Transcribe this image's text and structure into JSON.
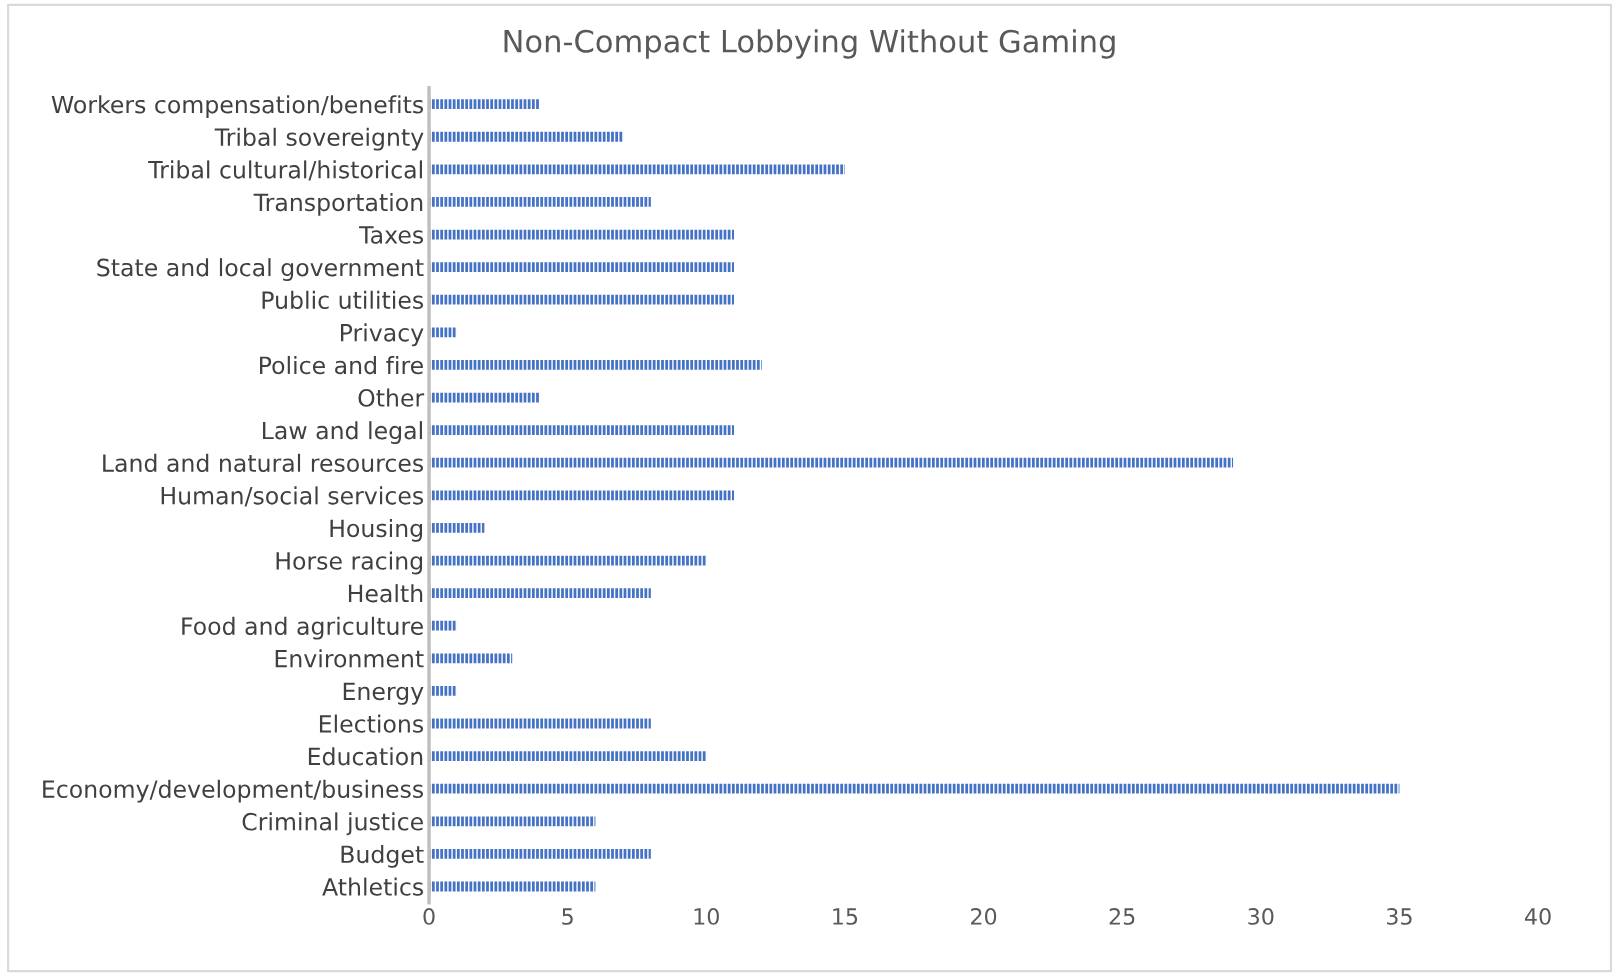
{
  "chart_data": {
    "type": "bar",
    "orientation": "horizontal",
    "title": "Non-Compact Lobbying Without Gaming",
    "categories": [
      "Workers compensation/benefits",
      "Tribal sovereignty",
      "Tribal cultural/historical",
      "Transportation",
      "Taxes",
      "State and local government",
      "Public utilities",
      "Privacy",
      "Police and fire",
      "Other",
      "Law and legal",
      "Land and natural resources",
      "Human/social services",
      "Housing",
      "Horse racing",
      "Health",
      "Food and agriculture",
      "Environment",
      "Energy",
      "Elections",
      "Education",
      "Economy/development/business",
      "Criminal justice",
      "Budget",
      "Athletics"
    ],
    "values": [
      4,
      7,
      15,
      8,
      11,
      11,
      11,
      1,
      12,
      4,
      11,
      29,
      11,
      2,
      10,
      8,
      1,
      3,
      1,
      8,
      10,
      35,
      6,
      8,
      6
    ],
    "color": "#4472c4",
    "xlim": [
      0,
      40
    ],
    "xticks": [
      0,
      5,
      10,
      15,
      20,
      25,
      30,
      35,
      40
    ],
    "grid": false,
    "legend": false
  }
}
